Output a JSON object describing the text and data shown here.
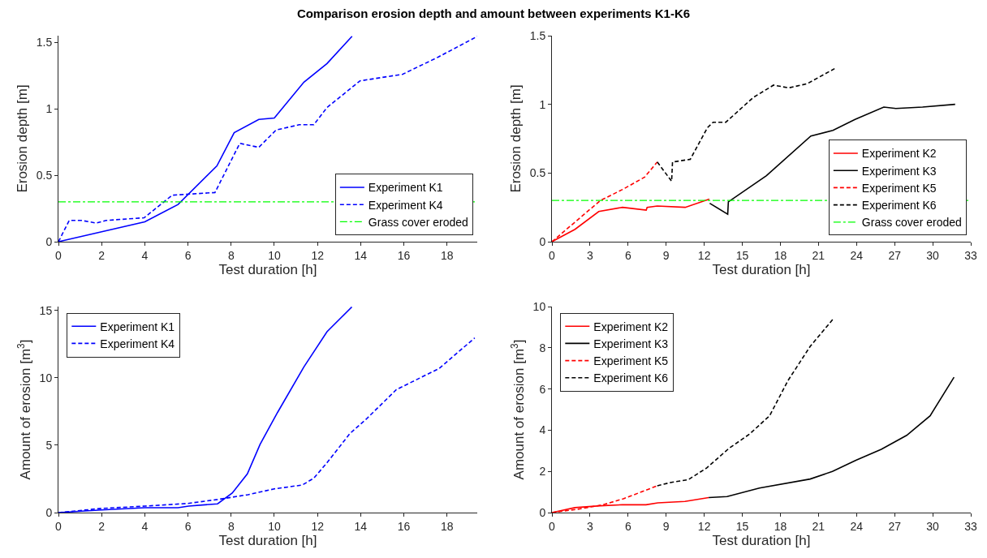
{
  "chart_data": [
    {
      "type": "line",
      "title": "Comparison erosion depth and amount between experiments K1-K6",
      "xlabel": "Test duration [h]",
      "ylabel": "Erosion depth [m]",
      "xlim": [
        0,
        19.4
      ],
      "xticks": [
        0,
        2,
        4,
        6,
        8,
        10,
        12,
        14,
        16,
        18
      ],
      "ylim": [
        0,
        1.55
      ],
      "yticks": [
        0,
        0.5,
        1,
        1.5
      ],
      "legend": "bottom right",
      "series": [
        {
          "name": "Experiment K1",
          "color": "#0000ff",
          "line_style": "solid",
          "x": [
            0,
            4.0,
            5.54,
            7.34,
            8.14,
            9.28,
            10.0,
            11.37,
            12.44,
            13.6
          ],
          "values": [
            0,
            0.15,
            0.28,
            0.57,
            0.82,
            0.92,
            0.93,
            1.2,
            1.34,
            1.545
          ]
        },
        {
          "name": "Experiment K4",
          "color": "#0000ff",
          "line_style": "dashed",
          "x": [
            0,
            0.5,
            1.07,
            1.76,
            2.21,
            3.97,
            5.27,
            7.25,
            8.4,
            9.28,
            10.08,
            11.15,
            11.83,
            12.44,
            13.97,
            15.95,
            17.6,
            19.4
          ],
          "values": [
            0,
            0.16,
            0.16,
            0.14,
            0.16,
            0.18,
            0.35,
            0.37,
            0.74,
            0.71,
            0.84,
            0.88,
            0.88,
            1.01,
            1.21,
            1.26,
            1.39,
            1.545
          ]
        }
      ],
      "ref_lines": [
        {
          "axis": "y",
          "value": 0.3,
          "label": "Grass cover eroded",
          "color": "#00ff00",
          "line_style": "dashdot"
        }
      ]
    },
    {
      "type": "line",
      "xlabel": "Test duration [h]",
      "ylabel": "Erosion depth [m]",
      "xlim": [
        0,
        33
      ],
      "xticks": [
        0,
        3,
        6,
        9,
        12,
        15,
        18,
        21,
        24,
        27,
        30,
        33
      ],
      "ylim": [
        0,
        1.5
      ],
      "yticks": [
        0,
        0.5,
        1,
        1.5
      ],
      "legend": "bottom right",
      "series": [
        {
          "name": "Experiment K2",
          "color": "#ff0000",
          "line_style": "solid",
          "x": [
            0,
            1.82,
            3.69,
            5.56,
            7.43,
            7.5,
            8.3,
            10.5,
            12.4
          ],
          "values": [
            0,
            0.09,
            0.22,
            0.25,
            0.23,
            0.25,
            0.26,
            0.25,
            0.31
          ]
        },
        {
          "name": "Experiment K3",
          "color": "#000000",
          "line_style": "solid",
          "x": [
            12.43,
            13.85,
            13.9,
            16.9,
            20.4,
            22.14,
            23.88,
            26.15,
            27.1,
            29.2,
            31.77
          ],
          "values": [
            0.28,
            0.2,
            0.29,
            0.48,
            0.77,
            0.81,
            0.89,
            0.98,
            0.97,
            0.98,
            1.0
          ]
        },
        {
          "name": "Experiment K5",
          "color": "#ff0000",
          "line_style": "dashed",
          "x": [
            0,
            3.82,
            5.56,
            7.3,
            8.3
          ],
          "values": [
            0,
            0.3,
            0.38,
            0.47,
            0.58
          ]
        },
        {
          "name": "Experiment K6",
          "color": "#000000",
          "line_style": "dashed",
          "x": [
            8.3,
            9.43,
            9.5,
            10.9,
            12.25,
            12.7,
            13.7,
            15.86,
            17.46,
            18.66,
            20.1,
            22.27
          ],
          "values": [
            0.58,
            0.44,
            0.58,
            0.6,
            0.83,
            0.87,
            0.87,
            1.05,
            1.14,
            1.12,
            1.15,
            1.26
          ]
        }
      ],
      "ref_lines": [
        {
          "axis": "y",
          "value": 0.3,
          "label": "Grass cover eroded",
          "color": "#00ff00",
          "line_style": "dashdot"
        }
      ]
    },
    {
      "type": "line",
      "xlabel": "Test duration [h]",
      "ylabel": "Amount of erosion [m$^{3}$]",
      "xlim": [
        0,
        19.4
      ],
      "xticks": [
        0,
        2,
        4,
        6,
        8,
        10,
        12,
        14,
        16,
        18
      ],
      "ylim": [
        0,
        15.3
      ],
      "yticks": [
        0,
        5,
        10,
        15
      ],
      "legend": "top left",
      "series": [
        {
          "name": "Experiment K1",
          "color": "#0000ff",
          "line_style": "solid",
          "x": [
            0,
            2,
            4,
            5.54,
            6.03,
            7.37,
            8.05,
            8.75,
            9.34,
            10.15,
            11.37,
            12.44,
            13.59
          ],
          "values": [
            0,
            0.2,
            0.36,
            0.36,
            0.48,
            0.65,
            1.45,
            2.87,
            5.07,
            7.44,
            10.82,
            13.43,
            15.27
          ]
        },
        {
          "name": "Experiment K4",
          "color": "#0000ff",
          "line_style": "dashed",
          "x": [
            0,
            2,
            4,
            6,
            7.37,
            8.78,
            10,
            11.3,
            11.83,
            12.44,
            13.5,
            14.27,
            15.65,
            17.63,
            19.28
          ],
          "values": [
            0,
            0.31,
            0.48,
            0.68,
            0.97,
            1.33,
            1.76,
            2.05,
            2.56,
            3.7,
            5.87,
            6.96,
            9.13,
            10.7,
            12.97
          ]
        }
      ]
    },
    {
      "type": "line",
      "xlabel": "Test duration [h]",
      "ylabel": "Amount of erosion [m$^{3}$]",
      "xlim": [
        0,
        33
      ],
      "xticks": [
        0,
        3,
        6,
        9,
        12,
        15,
        18,
        21,
        24,
        27,
        30,
        33
      ],
      "ylim": [
        0,
        10
      ],
      "yticks": [
        0,
        2,
        4,
        6,
        8,
        10
      ],
      "legend": "top left",
      "series": [
        {
          "name": "Experiment K2",
          "color": "#ff0000",
          "line_style": "solid",
          "x": [
            0,
            1.81,
            3.81,
            5.55,
            7.41,
            8.35,
            10.48,
            12.35
          ],
          "values": [
            0,
            0.24,
            0.33,
            0.38,
            0.38,
            0.47,
            0.54,
            0.73
          ]
        },
        {
          "name": "Experiment K3",
          "color": "#000000",
          "line_style": "solid",
          "x": [
            12.35,
            13.8,
            16.35,
            20.35,
            22.1,
            23.95,
            25.95,
            27.95,
            29.8,
            31.68
          ],
          "values": [
            0.73,
            0.78,
            1.19,
            1.63,
            2.0,
            2.54,
            3.07,
            3.75,
            4.7,
            6.57
          ]
        },
        {
          "name": "Experiment K5",
          "color": "#ff0000",
          "line_style": "dashed",
          "x": [
            0,
            2,
            4.03,
            5.63,
            8.3
          ],
          "values": [
            0,
            0.16,
            0.38,
            0.67,
            1.3
          ]
        },
        {
          "name": "Experiment K6",
          "color": "#000000",
          "line_style": "dashed",
          "x": [
            8.3,
            9.42,
            10.75,
            12.2,
            13.95,
            15.55,
            17.15,
            18.6,
            20.35,
            22.2
          ],
          "values": [
            1.3,
            1.47,
            1.6,
            2.17,
            3.12,
            3.8,
            4.7,
            6.41,
            8.07,
            9.43
          ]
        }
      ]
    }
  ]
}
